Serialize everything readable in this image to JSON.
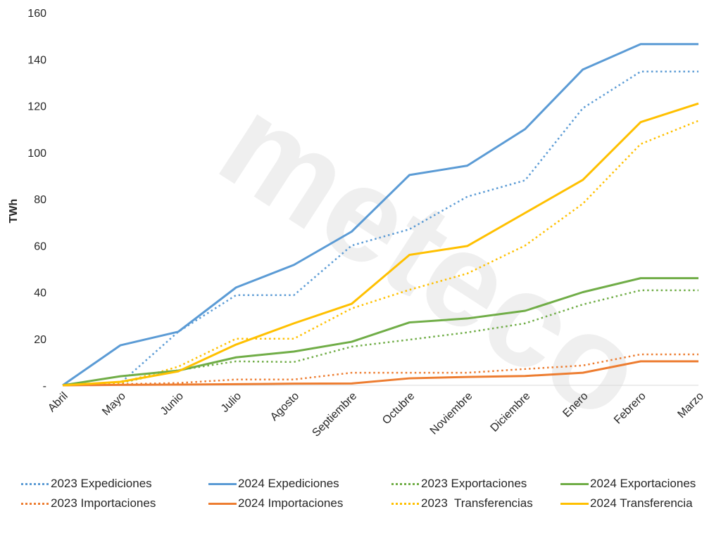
{
  "chart_data": {
    "type": "line",
    "title": "",
    "xlabel": "",
    "ylabel": "TWh",
    "ylim": [
      0,
      160
    ],
    "yticks": [
      0,
      20,
      40,
      60,
      80,
      100,
      120,
      140,
      160
    ],
    "ytick_labels": [
      "-",
      "20",
      "40",
      "60",
      "80",
      "100",
      "120",
      "140",
      "160"
    ],
    "grid": false,
    "legend_position": "bottom",
    "watermark": "meteco",
    "categories": [
      "Abril",
      "Mayo",
      "Junio",
      "Julio",
      "Agosto",
      "Septiembre",
      "Octubre",
      "Noviembre",
      "Diciembre",
      "Enero",
      "Febrero",
      "Marzo"
    ],
    "series": [
      {
        "name": "2023 Expediciones",
        "style": "dotted",
        "color": "#5B9BD5",
        "values": [
          0,
          1,
          23,
          38.7,
          38.7,
          60,
          67,
          81,
          88,
          119,
          134.7,
          134.7
        ]
      },
      {
        "name": "2024 Expediciones",
        "style": "solid",
        "color": "#5B9BD5",
        "values": [
          0,
          17.2,
          23,
          42,
          51.7,
          66,
          90.3,
          94.3,
          110,
          135.6,
          146.5,
          146.5
        ]
      },
      {
        "name": "2023 Exportaciones",
        "style": "dotted",
        "color": "#70AD47",
        "values": [
          0,
          1,
          6.5,
          10.3,
          10,
          16.6,
          19.6,
          22.7,
          26.6,
          34.7,
          40.8,
          40.8
        ]
      },
      {
        "name": "2024 Exportaciones",
        "style": "solid",
        "color": "#70AD47",
        "values": [
          0,
          3.9,
          6.3,
          12,
          14.5,
          18.7,
          27,
          28.7,
          32,
          40,
          46,
          46
        ]
      },
      {
        "name": "2023 Importaciones",
        "style": "dotted",
        "color": "#ED7D31",
        "values": [
          0,
          0.5,
          1,
          2.5,
          2.5,
          5.4,
          5.4,
          5.4,
          7,
          8.5,
          13.3,
          13.3
        ]
      },
      {
        "name": "2024 Importaciones",
        "style": "solid",
        "color": "#ED7D31",
        "values": [
          0,
          0.2,
          0.3,
          0.5,
          0.7,
          0.8,
          3,
          3.6,
          4,
          5.4,
          10.3,
          10.3
        ]
      },
      {
        "name": "2023  Transferencias",
        "style": "dotted",
        "color": "#FFC000",
        "values": [
          0,
          1,
          8,
          20,
          20,
          33,
          41,
          48,
          60,
          78,
          103.6,
          113.6
        ]
      },
      {
        "name": "2024 Transferencia",
        "style": "solid",
        "color": "#FFC000",
        "values": [
          0,
          1.5,
          6,
          17.5,
          26.6,
          35,
          56,
          59.8,
          74,
          88.2,
          113,
          121
        ]
      }
    ],
    "legend_order": [
      "2023 Expediciones",
      "2024 Expediciones",
      "2023 Exportaciones",
      "2024 Exportaciones",
      "2023 Importaciones",
      "2024 Importaciones",
      "2023  Transferencias",
      "2024 Transferencia"
    ]
  }
}
